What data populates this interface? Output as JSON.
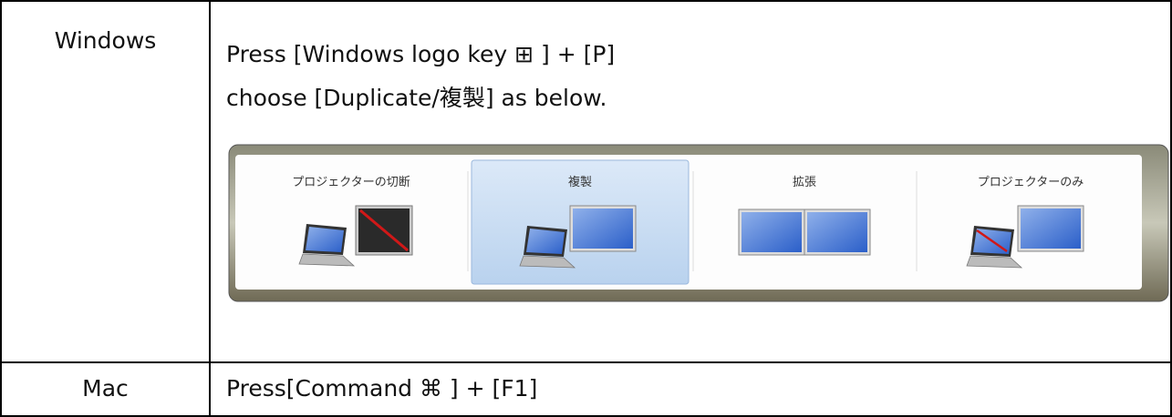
{
  "rows": [
    {
      "label": "Windows",
      "lines": [
        "Press [Windows logo key ⊞ ] + [P]",
        "choose [Duplicate/複製] as below."
      ],
      "options": [
        "プロジェクターの切断",
        "複製",
        "拡張",
        "プロジェクターのみ"
      ]
    },
    {
      "label": "Mac",
      "lines": [
        "Press[Command ⌘ ] + [F1]"
      ]
    }
  ]
}
